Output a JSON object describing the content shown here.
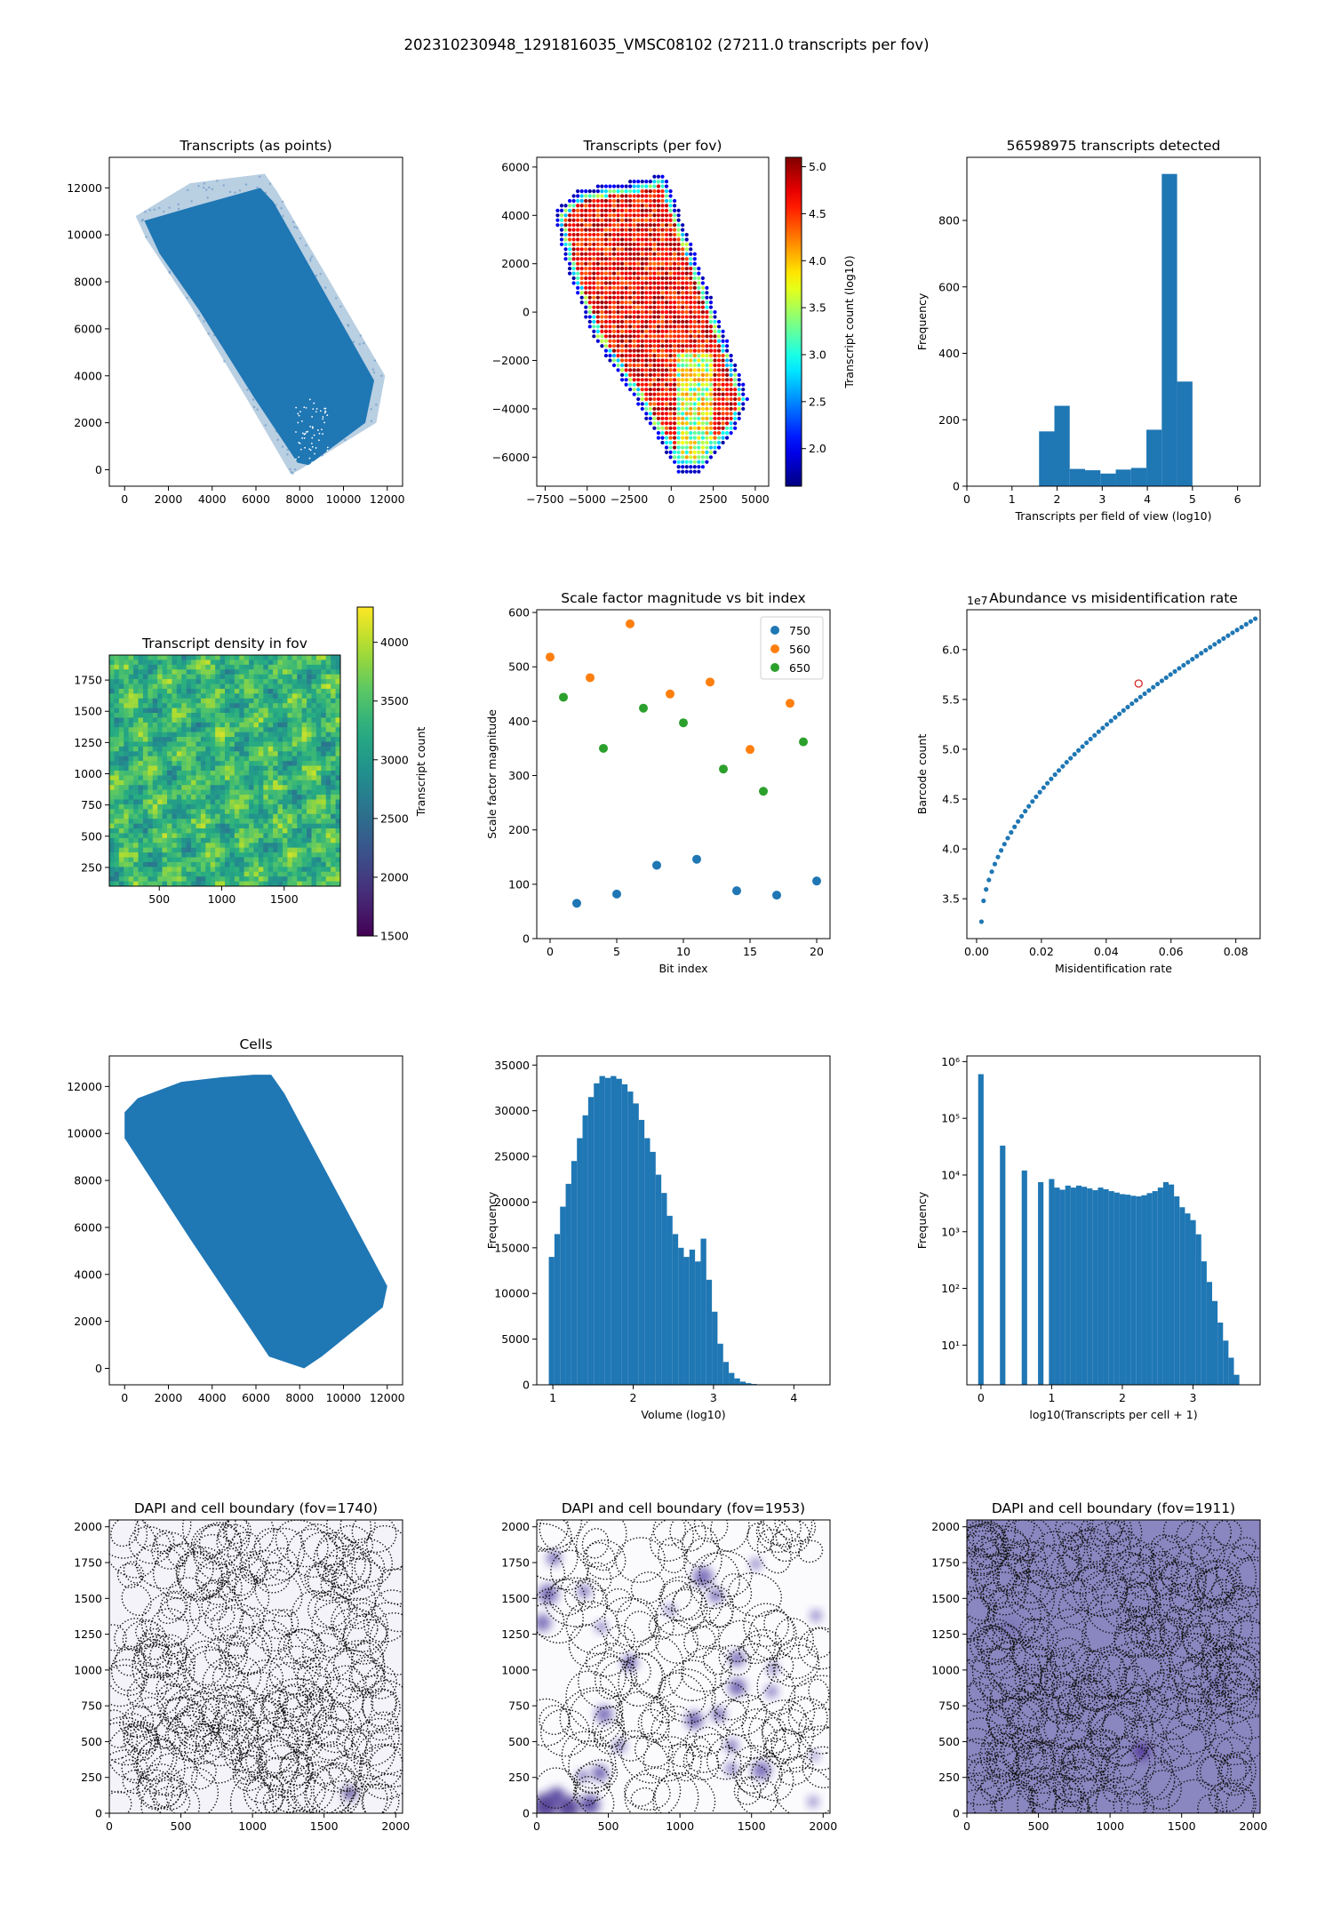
{
  "suptitle": "202310230948_1291816035_VMSC08102 (27211.0 transcripts per fov)",
  "chart_data": [
    {
      "id": "p1",
      "type": "scatter",
      "title": "Transcripts (as points)",
      "xlabel": "",
      "ylabel": "",
      "xlim": [
        -700,
        12700
      ],
      "ylim": [
        -700,
        13300
      ],
      "xticks": [
        "0",
        "2000",
        "4000",
        "6000",
        "8000",
        "10000",
        "12000"
      ],
      "yticks": [
        "0",
        "2000",
        "4000",
        "6000",
        "8000",
        "10000",
        "12000"
      ],
      "xtick_values": [
        0,
        2000,
        4000,
        6000,
        8000,
        10000,
        12000
      ],
      "ytick_values": [
        0,
        2000,
        4000,
        6000,
        8000,
        10000,
        12000
      ],
      "region_outer": [
        [
          500,
          10800
        ],
        [
          3000,
          12200
        ],
        [
          6400,
          12600
        ],
        [
          7000,
          11800
        ],
        [
          11900,
          4000
        ],
        [
          11500,
          2000
        ],
        [
          8000,
          0
        ],
        [
          7600,
          -200
        ],
        [
          5600,
          3000
        ],
        [
          3000,
          7000
        ],
        [
          1000,
          9800
        ]
      ],
      "region_inner": [
        [
          900,
          10600
        ],
        [
          3500,
          11300
        ],
        [
          6200,
          12000
        ],
        [
          6800,
          11400
        ],
        [
          11400,
          3800
        ],
        [
          11000,
          2000
        ],
        [
          8400,
          200
        ],
        [
          7900,
          300
        ],
        [
          5900,
          3100
        ],
        [
          3400,
          6800
        ],
        [
          1600,
          9200
        ]
      ],
      "color": "#1f77b4"
    },
    {
      "id": "p2",
      "type": "scatter",
      "title": "Transcripts (per fov)",
      "xlabel": "",
      "ylabel": "",
      "xlim": [
        -8000,
        5800
      ],
      "ylim": [
        -7200,
        6400
      ],
      "xticks": [
        "−7500",
        "−5000",
        "−2500",
        "0",
        "2500",
        "5000"
      ],
      "yticks": [
        "−6000",
        "−4000",
        "−2000",
        "0",
        "2000",
        "4000",
        "6000"
      ],
      "xtick_values": [
        -7500,
        -5000,
        -2500,
        0,
        2500,
        5000
      ],
      "ytick_values": [
        -6000,
        -4000,
        -2000,
        0,
        2000,
        4000,
        6000
      ],
      "region": [
        [
          -7000,
          4100
        ],
        [
          -5400,
          5100
        ],
        [
          -1600,
          5500
        ],
        [
          -400,
          5800
        ],
        [
          4600,
          -3600
        ],
        [
          3800,
          -5000
        ],
        [
          1800,
          -6600
        ],
        [
          400,
          -6600
        ],
        [
          -2000,
          -3800
        ],
        [
          -4600,
          -1100
        ],
        [
          -6200,
          1800
        ]
      ],
      "colorbar": {
        "label": "Transcript count (log10)",
        "ticks": [
          "2.0",
          "2.5",
          "3.0",
          "3.5",
          "4.0",
          "4.5",
          "5.0"
        ],
        "tick_values": [
          2.0,
          2.5,
          3.0,
          3.5,
          4.0,
          4.5,
          5.0
        ],
        "range": [
          1.6,
          5.1
        ],
        "colormap": "jet"
      }
    },
    {
      "id": "p3",
      "type": "bar",
      "title": "56598975 transcripts detected",
      "xlabel": "Transcripts per field of view (log10)",
      "ylabel": "Frequency",
      "xlim": [
        0,
        6.5
      ],
      "ylim": [
        0,
        990
      ],
      "xticks": [
        "0",
        "1",
        "2",
        "3",
        "4",
        "5",
        "6"
      ],
      "xtick_values": [
        0,
        1,
        2,
        3,
        4,
        5,
        6
      ],
      "yticks": [
        "0",
        "200",
        "400",
        "600",
        "800"
      ],
      "ytick_values": [
        0,
        200,
        400,
        600,
        800
      ],
      "bin_edges": [
        1.6,
        1.94,
        2.28,
        2.62,
        2.96,
        3.3,
        3.64,
        3.98,
        4.32,
        4.66,
        5.0
      ],
      "values": [
        165,
        242,
        52,
        48,
        38,
        50,
        55,
        170,
        940,
        315
      ],
      "color": "#1f77b4"
    },
    {
      "id": "p4",
      "type": "heatmap",
      "title": "Transcript density in fov",
      "xlabel": "",
      "ylabel": "",
      "xlim": [
        100,
        1950
      ],
      "ylim": [
        100,
        1950
      ],
      "xticks": [
        "500",
        "1000",
        "1500"
      ],
      "xtick_values": [
        500,
        1000,
        1500
      ],
      "yticks": [
        "250",
        "500",
        "750",
        "1000",
        "1250",
        "1500",
        "1750"
      ],
      "ytick_values": [
        250,
        500,
        750,
        1000,
        1250,
        1500,
        1750
      ],
      "colorbar": {
        "label": "Transcript count",
        "ticks": [
          "1500",
          "2000",
          "2500",
          "3000",
          "3500",
          "4000"
        ],
        "tick_values": [
          1500,
          2000,
          2500,
          3000,
          3500,
          4000
        ],
        "range": [
          1500,
          4300
        ],
        "colormap": "viridis"
      },
      "typical_value_range": [
        2600,
        4100
      ]
    },
    {
      "id": "p5",
      "type": "scatter",
      "title": "Scale factor magnitude vs bit index",
      "xlabel": "Bit index",
      "ylabel": "Scale factor magnitude",
      "xlim": [
        -1,
        21
      ],
      "ylim": [
        0,
        605
      ],
      "xticks": [
        "0",
        "5",
        "10",
        "15",
        "20"
      ],
      "xtick_values": [
        0,
        5,
        10,
        15,
        20
      ],
      "yticks": [
        "0",
        "100",
        "200",
        "300",
        "400",
        "500",
        "600"
      ],
      "ytick_values": [
        0,
        100,
        200,
        300,
        400,
        500,
        600
      ],
      "legend_position": "top-right",
      "series": [
        {
          "name": "750",
          "color": "#1f77b4",
          "x": [
            2,
            5,
            8,
            11,
            14,
            17,
            20
          ],
          "y": [
            65,
            82,
            135,
            146,
            88,
            80,
            106
          ]
        },
        {
          "name": "560",
          "color": "#ff7f0e",
          "x": [
            0,
            3,
            6,
            9,
            12,
            15,
            18
          ],
          "y": [
            518,
            480,
            579,
            450,
            472,
            348,
            433
          ]
        },
        {
          "name": "650",
          "color": "#2ca02c",
          "x": [
            1,
            4,
            7,
            10,
            13,
            16,
            19
          ],
          "y": [
            444,
            350,
            424,
            397,
            312,
            271,
            362
          ]
        }
      ]
    },
    {
      "id": "p6",
      "type": "scatter",
      "title": "Abundance vs misidentification rate",
      "xlabel": "Misidentification rate",
      "ylabel": "Barcode count",
      "offset_label": "1e7",
      "xlim": [
        -0.003,
        0.0875
      ],
      "ylim": [
        3.1,
        6.4
      ],
      "xticks": [
        "0.00",
        "0.02",
        "0.04",
        "0.06",
        "0.08"
      ],
      "xtick_values": [
        0,
        0.02,
        0.04,
        0.06,
        0.08
      ],
      "yticks": [
        "3.5",
        "4.0",
        "4.5",
        "5.0",
        "5.5",
        "6.0"
      ],
      "ytick_values": [
        3.5,
        4.0,
        4.5,
        5.0,
        5.5,
        6.0
      ],
      "curve_model": "y = 3.27 + 3.04 * ((x - 0.0015) / 0.0845)^0.55",
      "x_range": [
        0.0015,
        0.086
      ],
      "n_points": 70,
      "highlight": {
        "x": 0.05,
        "y": 5.66,
        "color": "#d62728"
      },
      "color": "#1f77b4"
    },
    {
      "id": "p7",
      "type": "scatter",
      "title": "Cells",
      "xlabel": "",
      "ylabel": "",
      "xlim": [
        -700,
        12700
      ],
      "ylim": [
        -700,
        13300
      ],
      "xticks": [
        "0",
        "2000",
        "4000",
        "6000",
        "8000",
        "10000",
        "12000"
      ],
      "xtick_values": [
        0,
        2000,
        4000,
        6000,
        8000,
        10000,
        12000
      ],
      "yticks": [
        "0",
        "2000",
        "4000",
        "6000",
        "8000",
        "10000",
        "12000"
      ],
      "ytick_values": [
        0,
        2000,
        4000,
        6000,
        8000,
        10000,
        12000
      ],
      "region": [
        [
          0,
          10900
        ],
        [
          600,
          11500
        ],
        [
          2600,
          12200
        ],
        [
          4500,
          12400
        ],
        [
          5900,
          12500
        ],
        [
          6700,
          12500
        ],
        [
          7300,
          11700
        ],
        [
          12000,
          3500
        ],
        [
          11800,
          2600
        ],
        [
          9000,
          500
        ],
        [
          8200,
          0
        ],
        [
          6600,
          500
        ],
        [
          5600,
          1900
        ],
        [
          3000,
          5500
        ],
        [
          0,
          9800
        ]
      ],
      "color": "#1f77b4"
    },
    {
      "id": "p8",
      "type": "bar",
      "title": "",
      "xlabel": "Volume (log10)",
      "ylabel": "Frequency",
      "xlim": [
        0.8,
        4.45
      ],
      "ylim": [
        0,
        36000
      ],
      "xticks": [
        "1",
        "2",
        "3",
        "4"
      ],
      "xtick_values": [
        1,
        2,
        3,
        4
      ],
      "yticks": [
        "0",
        "5000",
        "10000",
        "15000",
        "20000",
        "25000",
        "30000",
        "35000"
      ],
      "ytick_values": [
        0,
        5000,
        10000,
        15000,
        20000,
        25000,
        30000,
        35000
      ],
      "bin_start": 0.95,
      "bin_width": 0.07,
      "values": [
        14000,
        16500,
        19500,
        22000,
        24500,
        27000,
        29500,
        31500,
        33000,
        33800,
        33600,
        33800,
        33500,
        32900,
        32100,
        30800,
        29000,
        27000,
        25500,
        23000,
        21000,
        18500,
        16500,
        15000,
        14000,
        14800,
        13500,
        16000,
        11500,
        8000,
        4500,
        2500,
        1300,
        700,
        350,
        180,
        90,
        40,
        20
      ],
      "color": "#1f77b4"
    },
    {
      "id": "p9",
      "type": "bar",
      "title": "",
      "xlabel": "log10(Transcripts per cell + 1)",
      "ylabel": "Frequency",
      "ylog": true,
      "xlim": [
        -0.2,
        3.95
      ],
      "ylim_exp": [
        0.3,
        6.1
      ],
      "xticks": [
        "0",
        "1",
        "2",
        "3"
      ],
      "xtick_values": [
        0,
        1,
        2,
        3
      ],
      "yticks": [
        "10¹",
        "10²",
        "10³",
        "10⁴",
        "10⁵",
        "10⁶"
      ],
      "ytick_exps": [
        1,
        2,
        3,
        4,
        5,
        6
      ],
      "bin_start": -0.04,
      "bin_width": 0.077,
      "values": [
        600000,
        0,
        0,
        0,
        33000,
        0,
        0,
        0,
        12000,
        0,
        0,
        7500,
        0,
        8500,
        6000,
        5500,
        6500,
        6000,
        6500,
        6200,
        5800,
        5400,
        6000,
        5600,
        5200,
        4900,
        4600,
        4500,
        4300,
        4200,
        4400,
        4800,
        5200,
        6000,
        7500,
        6800,
        4200,
        2700,
        2100,
        1600,
        900,
        300,
        130,
        60,
        25,
        12,
        6,
        3
      ],
      "color": "#1f77b4"
    },
    {
      "id": "p10",
      "type": "scatter",
      "title": "DAPI and cell boundary (fov=1740)",
      "xlabel": "",
      "ylabel": "",
      "xlim": [
        0,
        2048
      ],
      "ylim": [
        0,
        2048
      ],
      "xticks": [
        "0",
        "500",
        "1000",
        "1500",
        "2000"
      ],
      "xtick_values": [
        0,
        500,
        1000,
        1500,
        2000
      ],
      "yticks": [
        "0",
        "250",
        "500",
        "750",
        "1000",
        "1250",
        "1500",
        "1750",
        "2000"
      ],
      "ytick_values": [
        0,
        250,
        500,
        750,
        1000,
        1250,
        1500,
        1750,
        2000
      ],
      "background": "#f4f3f9",
      "n_cells": 270,
      "blobs": [
        {
          "x": 1680,
          "y": 140,
          "r": 45,
          "color": "#3f2a88"
        }
      ]
    },
    {
      "id": "p11",
      "type": "scatter",
      "title": "DAPI and cell boundary (fov=1953)",
      "xlabel": "",
      "ylabel": "",
      "xlim": [
        0,
        2048
      ],
      "ylim": [
        0,
        2048
      ],
      "xticks": [
        "0",
        "500",
        "1000",
        "1500",
        "2000"
      ],
      "xtick_values": [
        0,
        500,
        1000,
        1500,
        2000
      ],
      "yticks": [
        "0",
        "250",
        "500",
        "750",
        "1000",
        "1250",
        "1500",
        "1750",
        "2000"
      ],
      "ytick_values": [
        0,
        250,
        500,
        750,
        1000,
        1250,
        1500,
        1750,
        2000
      ],
      "background": "#fbfbfe",
      "n_cells": 150,
      "blobs": [
        {
          "x": 80,
          "y": 1530,
          "r": 70,
          "color": "#6a5bb0"
        },
        {
          "x": 120,
          "y": 1780,
          "r": 50,
          "color": "#6a5bb0"
        },
        {
          "x": 40,
          "y": 1330,
          "r": 60,
          "color": "#6a5bb0"
        },
        {
          "x": 330,
          "y": 1550,
          "r": 45,
          "color": "#6a5bb0"
        },
        {
          "x": 450,
          "y": 1300,
          "r": 40,
          "color": "#7d6fbd"
        },
        {
          "x": 650,
          "y": 1050,
          "r": 55,
          "color": "#6a5bb0"
        },
        {
          "x": 930,
          "y": 1420,
          "r": 40,
          "color": "#8b80c4"
        },
        {
          "x": 1160,
          "y": 1650,
          "r": 70,
          "color": "#6a5bb0"
        },
        {
          "x": 1250,
          "y": 1520,
          "r": 50,
          "color": "#6a5bb0"
        },
        {
          "x": 1400,
          "y": 1080,
          "r": 55,
          "color": "#6a5bb0"
        },
        {
          "x": 1400,
          "y": 880,
          "r": 60,
          "color": "#5c4ca6"
        },
        {
          "x": 1650,
          "y": 1010,
          "r": 40,
          "color": "#7d6fbd"
        },
        {
          "x": 1640,
          "y": 850,
          "r": 45,
          "color": "#7d6fbd"
        },
        {
          "x": 1950,
          "y": 1380,
          "r": 40,
          "color": "#7d6fbd"
        },
        {
          "x": 1100,
          "y": 650,
          "r": 60,
          "color": "#5c4ca6"
        },
        {
          "x": 1270,
          "y": 690,
          "r": 50,
          "color": "#6a5bb0"
        },
        {
          "x": 1360,
          "y": 470,
          "r": 45,
          "color": "#6a5bb0"
        },
        {
          "x": 1570,
          "y": 300,
          "r": 65,
          "color": "#6a5bb0"
        },
        {
          "x": 1360,
          "y": 310,
          "r": 45,
          "color": "#7d6fbd"
        },
        {
          "x": 470,
          "y": 690,
          "r": 60,
          "color": "#6a5bb0"
        },
        {
          "x": 580,
          "y": 470,
          "r": 45,
          "color": "#7d6fbd"
        },
        {
          "x": 440,
          "y": 280,
          "r": 55,
          "color": "#5c4ca6"
        },
        {
          "x": 320,
          "y": 260,
          "r": 40,
          "color": "#6a5bb0"
        },
        {
          "x": 1530,
          "y": 1740,
          "r": 40,
          "color": "#7d6fbd"
        },
        {
          "x": 1940,
          "y": 400,
          "r": 35,
          "color": "#8b80c4"
        },
        {
          "x": 60,
          "y": 50,
          "r": 90,
          "color": "#3f2a88"
        },
        {
          "x": 220,
          "y": 40,
          "r": 80,
          "color": "#3f2a88"
        },
        {
          "x": 370,
          "y": 60,
          "r": 70,
          "color": "#4a3798"
        },
        {
          "x": 140,
          "y": 120,
          "r": 60,
          "color": "#4a3798"
        },
        {
          "x": 1930,
          "y": 80,
          "r": 40,
          "color": "#8b80c4"
        }
      ]
    },
    {
      "id": "p12",
      "type": "scatter",
      "title": "DAPI and cell boundary (fov=1911)",
      "xlabel": "",
      "ylabel": "",
      "xlim": [
        0,
        2048
      ],
      "ylim": [
        0,
        2048
      ],
      "xticks": [
        "0",
        "500",
        "1000",
        "1500",
        "2000"
      ],
      "xtick_values": [
        0,
        500,
        1000,
        1500,
        2000
      ],
      "yticks": [
        "0",
        "250",
        "500",
        "750",
        "1000",
        "1250",
        "1500",
        "1750",
        "2000"
      ],
      "ytick_values": [
        0,
        250,
        500,
        750,
        1000,
        1250,
        1500,
        1750,
        2000
      ],
      "background": "#8a86c0",
      "n_cells": 320,
      "blobs": [
        {
          "x": 1220,
          "y": 430,
          "r": 55,
          "color": "#4b2f92"
        },
        {
          "x": 1750,
          "y": 900,
          "r": 60,
          "color": "#7a74b6"
        },
        {
          "x": 300,
          "y": 1300,
          "r": 70,
          "color": "#7a74b6"
        }
      ]
    }
  ]
}
